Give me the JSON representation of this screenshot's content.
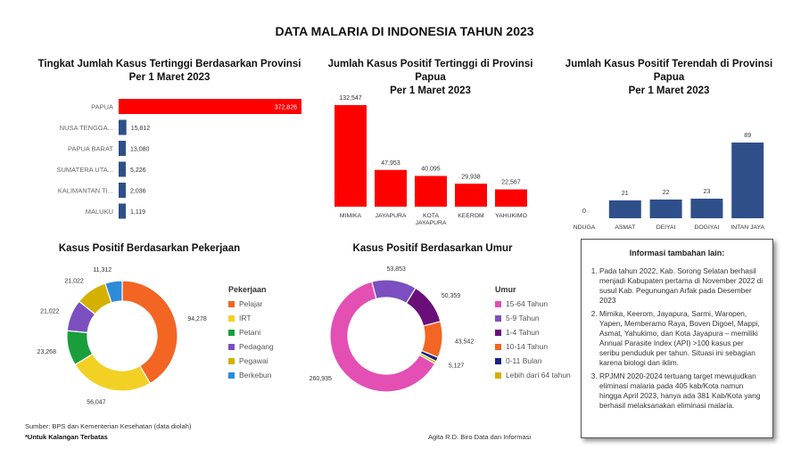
{
  "title": "DATA MALARIA DI INDONESIA TAHUN 2023",
  "charts": {
    "provinsi": {
      "title_line1": "Tingkat Jumlah Kasus Tertinggi Berdasarkan Provinsi",
      "title_line2": "Per 1 Maret 2023"
    },
    "papua_tinggi": {
      "title_line1": "Jumlah Kasus Positif Tertinggi di Provinsi Papua",
      "title_line2": "Per 1 Maret 2023"
    },
    "papua_rendah": {
      "title_line1": "Jumlah Kasus Positif Terendah di Provinsi Papua",
      "title_line2": "Per 1 Maret 2023"
    },
    "pekerjaan": {
      "title": "Kasus Positif Berdasarkan Pekerjaan"
    },
    "umur": {
      "title": "Kasus Positif Berdasarkan Umur"
    }
  },
  "chart_data": [
    {
      "id": "provinsi",
      "type": "bar",
      "orientation": "horizontal",
      "categories": [
        "PAPUA",
        "NUSA TENGGA...",
        "PAPUA BARAT",
        "SUMATERA UTA...",
        "KALIMANTAN TI...",
        "MALUKU"
      ],
      "values": [
        372826,
        15812,
        13080,
        5226,
        2036,
        1119
      ],
      "labels": [
        "372,826",
        "15,812",
        "13,080",
        "5,226",
        "2,036",
        "1,119"
      ],
      "colors": [
        "#ff0000",
        "#2f4f8a",
        "#2f4f8a",
        "#2f4f8a",
        "#2f4f8a",
        "#2f4f8a"
      ]
    },
    {
      "id": "papua_tinggi",
      "type": "bar",
      "categories": [
        "MIMIKA",
        "JAYAPURA",
        "KOTA JAYAPURA",
        "KEEROM",
        "YAHUKIMO"
      ],
      "category_lines": [
        [
          "MIMIKA"
        ],
        [
          "JAYAPURA"
        ],
        [
          "KOTA",
          "JAYAPURA"
        ],
        [
          "KEEROM"
        ],
        [
          "YAHUKIMO"
        ]
      ],
      "values": [
        132547,
        47953,
        40095,
        29938,
        22567
      ],
      "labels": [
        "132,547",
        "47,953",
        "40,095",
        "29,938",
        "22,567"
      ],
      "color": "#ff0000"
    },
    {
      "id": "papua_rendah",
      "type": "bar",
      "categories": [
        "NDUGA",
        "ASMAT",
        "DEIYAI",
        "DOGIYAI",
        "INTAN JAYA"
      ],
      "values": [
        0,
        21,
        22,
        23,
        89
      ],
      "labels": [
        "0",
        "21",
        "22",
        "23",
        "89"
      ],
      "color": "#2f4f8a"
    },
    {
      "id": "pekerjaan",
      "type": "pie",
      "donut": true,
      "legend_title": "Pekerjaan",
      "slices": [
        {
          "name": "Pelajar",
          "value": 94278,
          "label": "94,278",
          "color": "#f26522"
        },
        {
          "name": "IRT",
          "value": 56047,
          "label": "56,047",
          "color": "#f2d024"
        },
        {
          "name": "Petani",
          "value": 23268,
          "label": "23,268",
          "color": "#1a9e3c"
        },
        {
          "name": "Pedagang",
          "value": 21022,
          "label": "21,022",
          "color": "#7b4fbf"
        },
        {
          "name": "Pegawai",
          "value": 21022,
          "label": "21,022",
          "color": "#d4b000"
        },
        {
          "name": "Berkebun",
          "value": 11312,
          "label": "11,312",
          "color": "#2e8bd8"
        }
      ]
    },
    {
      "id": "umur",
      "type": "pie",
      "donut": true,
      "legend_title": "Umur",
      "slices": [
        {
          "name": "15-64 Tahun",
          "value": 260935,
          "label": "260,935",
          "color": "#e34fb3"
        },
        {
          "name": "5-9 Tahun",
          "value": 53853,
          "label": "53,853",
          "color": "#7b4fbf"
        },
        {
          "name": "1-4 Tahun",
          "value": 50359,
          "label": "50,359",
          "color": "#6a0f7a"
        },
        {
          "name": "10-14 Tahun",
          "value": 43542,
          "label": "43,542",
          "color": "#f26522"
        },
        {
          "name": "0-11 Bulan",
          "value": 5127,
          "label": "5,127",
          "color": "#1a237e"
        },
        {
          "name": "Lebih dari 64 tahun",
          "value": 3000,
          "label": "",
          "color": "#d4b000"
        }
      ]
    }
  ],
  "info": {
    "title": "Informasi tambahan lain:",
    "items": [
      "Pada tahun 2022, Kab. Sorong Selatan berhasil menjadi Kabupaten pertama di November 2022 di susul Kab. Pegunungan Arfak pada Desember 2023",
      "Mimika,  Keerom, Jayapura, Sarmi, Waropen, Yapen, Memberamo Raya, Boven Digoel, Mappi, Asmat, Yahukimo, dan Kota Jayapura – memiliki Annual Parasite Index (API) >100 kasus per seribu penduduk per tahun. Situasi ini sebagian karena biologi dan iklim.",
      "RPJMN 2020-2024 tertuang target mewujudkan eliminasi malaria pada 405 kab/Kota namun hingga April 2023, hanya ada 381 Kab/Kota yang berhasil melaksanakan eliminasi malaria."
    ]
  },
  "footer": {
    "source": "Sumber: BPS dan Kementerian Kesehatan (data diolah)",
    "note": "*Untuk Kalangan Terbatas",
    "author": "Agita R.D. Biro Data dan Informasi"
  }
}
